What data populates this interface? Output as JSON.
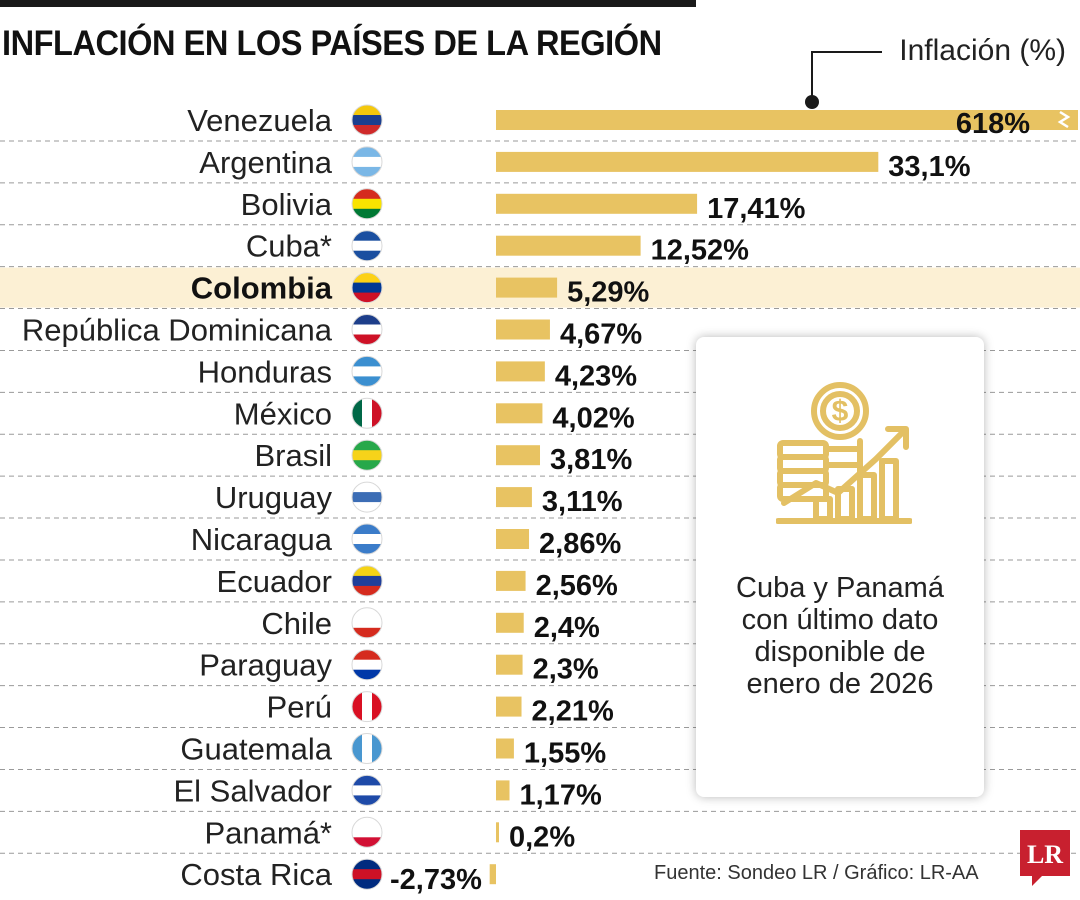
{
  "header": {
    "title": "INFLACIÓN EN LOS PAÍSES DE LA REGIÓN",
    "legend": "Inflación (%)"
  },
  "note": {
    "text": "Cuba y Panamá con último dato disponible de enero de 2026"
  },
  "footer": {
    "source": "Fuente: Sondeo LR / Gráfico: LR-AA",
    "logo": "LR"
  },
  "colors": {
    "bar": "#e8c362",
    "highlight": "#fcf0d4",
    "text": "#1a1a1a"
  },
  "chart_data": {
    "type": "bar",
    "orientation": "horizontal",
    "title": "INFLACIÓN EN LOS PAÍSES DE LA REGIÓN",
    "legend": "Inflación (%)",
    "highlight": "Colombia",
    "axis_break": "Venezuela",
    "categories": [
      "Venezuela",
      "Argentina",
      "Bolivia",
      "Cuba*",
      "Colombia",
      "República Dominicana",
      "Honduras",
      "México",
      "Brasil",
      "Uruguay",
      "Nicaragua",
      "Ecuador",
      "Chile",
      "Paraguay",
      "Perú",
      "Guatemala",
      "El Salvador",
      "Panamá*",
      "Costa Rica"
    ],
    "values": [
      618,
      33.1,
      17.41,
      12.52,
      5.29,
      4.67,
      4.23,
      4.02,
      3.81,
      3.11,
      2.86,
      2.56,
      2.4,
      2.3,
      2.21,
      1.55,
      1.17,
      0.2,
      -2.73
    ],
    "value_labels": [
      "618%",
      "33,1%",
      "17,41%",
      "12,52%",
      "5,29%",
      "4,67%",
      "4,23%",
      "4,02%",
      "3,81%",
      "3,11%",
      "2,86%",
      "2,56%",
      "2,4%",
      "2,3%",
      "2,21%",
      "1,55%",
      "1,17%",
      "0,2%",
      "-2,73%"
    ],
    "flags": [
      "venezuela-flag",
      "argentina-flag",
      "bolivia-flag",
      "cuba-flag",
      "colombia-flag",
      "dominican-republic-flag",
      "honduras-flag",
      "mexico-flag",
      "brazil-flag",
      "uruguay-flag",
      "nicaragua-flag",
      "ecuador-flag",
      "chile-flag",
      "paraguay-flag",
      "peru-flag",
      "guatemala-flag",
      "el-salvador-flag",
      "panama-flag",
      "costa-rica-flag"
    ]
  }
}
